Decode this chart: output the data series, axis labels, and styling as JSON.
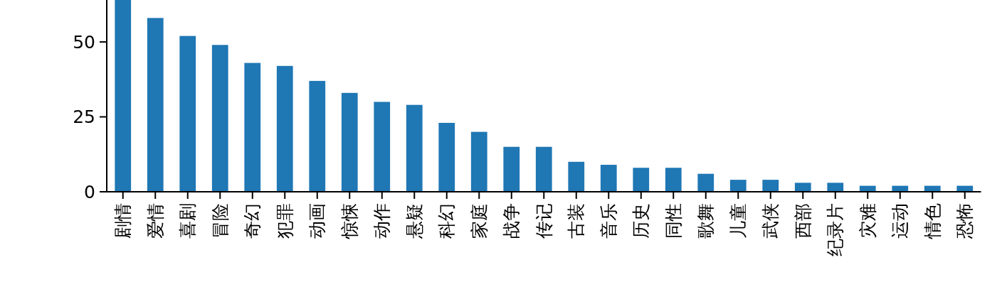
{
  "chart_data": {
    "type": "bar",
    "categories": [
      "剧情",
      "爱情",
      "喜剧",
      "冒险",
      "奇幻",
      "犯罪",
      "动画",
      "惊悚",
      "动作",
      "悬疑",
      "科幻",
      "家庭",
      "战争",
      "传记",
      "古装",
      "音乐",
      "历史",
      "同性",
      "歌舞",
      "儿童",
      "武侠",
      "西部",
      "纪录片",
      "灾难",
      "运动",
      "情色",
      "恐怖"
    ],
    "values": [
      64,
      58,
      52,
      49,
      43,
      42,
      37,
      33,
      30,
      29,
      23,
      20,
      15,
      15,
      10,
      9,
      8,
      8,
      6,
      4,
      4,
      3,
      3,
      2,
      2,
      2,
      2
    ],
    "color": "#1f77b4",
    "ylim": [
      0,
      64
    ],
    "yticks": [
      0,
      25,
      50
    ]
  }
}
